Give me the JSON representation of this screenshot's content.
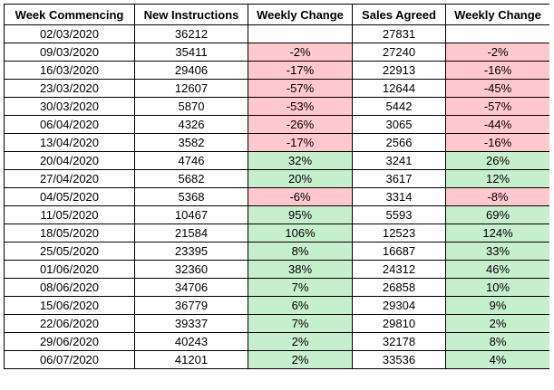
{
  "headers": [
    "Week Commencing",
    "New Instructions",
    "Weekly Change",
    "Sales Agreed",
    "Weekly Change"
  ],
  "colors": {
    "positive_fill": "#c6efce",
    "negative_fill": "#ffc7ce",
    "border": "#000000"
  },
  "rows": [
    {
      "week": "02/03/2020",
      "instructions": "36212",
      "instr_change": "",
      "sales": "27831",
      "sales_change": ""
    },
    {
      "week": "09/03/2020",
      "instructions": "35411",
      "instr_change": "-2%",
      "sales": "27240",
      "sales_change": "-2%"
    },
    {
      "week": "16/03/2020",
      "instructions": "29406",
      "instr_change": "-17%",
      "sales": "22913",
      "sales_change": "-16%"
    },
    {
      "week": "23/03/2020",
      "instructions": "12607",
      "instr_change": "-57%",
      "sales": "12644",
      "sales_change": "-45%"
    },
    {
      "week": "30/03/2020",
      "instructions": "5870",
      "instr_change": "-53%",
      "sales": "5442",
      "sales_change": "-57%"
    },
    {
      "week": "06/04/2020",
      "instructions": "4326",
      "instr_change": "-26%",
      "sales": "3065",
      "sales_change": "-44%"
    },
    {
      "week": "13/04/2020",
      "instructions": "3582",
      "instr_change": "-17%",
      "sales": "2566",
      "sales_change": "-16%"
    },
    {
      "week": "20/04/2020",
      "instructions": "4746",
      "instr_change": "32%",
      "sales": "3241",
      "sales_change": "26%"
    },
    {
      "week": "27/04/2020",
      "instructions": "5682",
      "instr_change": "20%",
      "sales": "3617",
      "sales_change": "12%"
    },
    {
      "week": "04/05/2020",
      "instructions": "5368",
      "instr_change": "-6%",
      "sales": "3314",
      "sales_change": "-8%"
    },
    {
      "week": "11/05/2020",
      "instructions": "10467",
      "instr_change": "95%",
      "sales": "5593",
      "sales_change": "69%"
    },
    {
      "week": "18/05/2020",
      "instructions": "21584",
      "instr_change": "106%",
      "sales": "12523",
      "sales_change": "124%"
    },
    {
      "week": "25/05/2020",
      "instructions": "23395",
      "instr_change": "8%",
      "sales": "16687",
      "sales_change": "33%"
    },
    {
      "week": "01/06/2020",
      "instructions": "32360",
      "instr_change": "38%",
      "sales": "24312",
      "sales_change": "46%"
    },
    {
      "week": "08/06/2020",
      "instructions": "34706",
      "instr_change": "7%",
      "sales": "26858",
      "sales_change": "10%"
    },
    {
      "week": "15/06/2020",
      "instructions": "36779",
      "instr_change": "6%",
      "sales": "29304",
      "sales_change": "9%"
    },
    {
      "week": "22/06/2020",
      "instructions": "39337",
      "instr_change": "7%",
      "sales": "29810",
      "sales_change": "2%"
    },
    {
      "week": "29/06/2020",
      "instructions": "40243",
      "instr_change": "2%",
      "sales": "32178",
      "sales_change": "8%"
    },
    {
      "week": "06/07/2020",
      "instructions": "41201",
      "instr_change": "2%",
      "sales": "33536",
      "sales_change": "4%"
    }
  ]
}
